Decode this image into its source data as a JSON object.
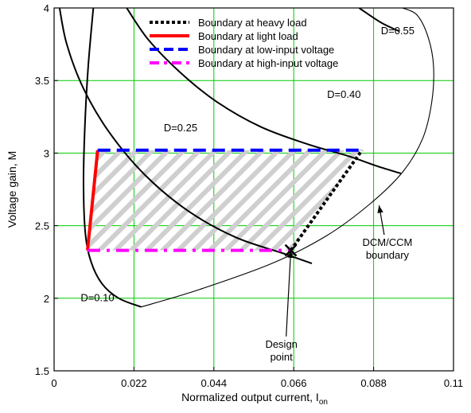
{
  "chart_data": {
    "type": "line",
    "xlabel": "Normalized output current, I",
    "xlabel_sub": "on",
    "ylabel": "Voltage gain, M",
    "xlim": [
      0,
      0.11
    ],
    "ylim": [
      1.5,
      4
    ],
    "xticks": [
      0,
      0.022,
      0.044,
      0.066,
      0.088,
      0.11
    ],
    "xtick_labels": [
      "0",
      "0.022",
      "0.044",
      "0.066",
      "0.088",
      "0.11"
    ],
    "yticks": [
      1.5,
      2,
      2.5,
      3,
      3.5,
      4
    ],
    "ytick_labels": [
      "1.5",
      "2",
      "2.5",
      "3",
      "3.5",
      "4"
    ],
    "grid": true,
    "grid_color": "#00cc00",
    "legend_position": "top-center",
    "series": [
      {
        "name": "Boundary at heavy load",
        "color": "#000000",
        "style": "dotted",
        "x": [
          0.0652,
          0.0848
        ],
        "y": [
          2.33,
          3.02
        ]
      },
      {
        "name": "Boundary at light load",
        "color": "#ff0000",
        "style": "solid",
        "x": [
          0.0092,
          0.012
        ],
        "y": [
          2.33,
          3.02
        ]
      },
      {
        "name": "Boundary at low-input voltage",
        "color": "#0000ff",
        "style": "dashed",
        "x": [
          0.012,
          0.0848
        ],
        "y": [
          3.02,
          3.02
        ]
      },
      {
        "name": "Boundary at high-input voltage",
        "color": "#ff00ff",
        "style": "dashdot",
        "x": [
          0.0092,
          0.0652
        ],
        "y": [
          2.33,
          2.33
        ]
      }
    ],
    "curves": [
      {
        "label": "D=0.10",
        "x": [
          0.0108,
          0.0094,
          0.0085,
          0.0081,
          0.0086,
          0.0102,
          0.0132,
          0.0178,
          0.024
        ],
        "y": [
          4.0,
          3.6,
          3.2,
          2.8,
          2.45,
          2.25,
          2.1,
          2.0,
          1.94
        ]
      },
      {
        "label": "D=0.25",
        "x": [
          0.0015,
          0.0035,
          0.008,
          0.015,
          0.025,
          0.037,
          0.05,
          0.063,
          0.071
        ],
        "y": [
          4.0,
          3.75,
          3.45,
          3.15,
          2.85,
          2.6,
          2.42,
          2.31,
          2.24
        ]
      },
      {
        "label": "D=0.40",
        "x": [
          0.02,
          0.026,
          0.035,
          0.045,
          0.057,
          0.07,
          0.081,
          0.089,
          0.0955
        ],
        "y": [
          4.0,
          3.78,
          3.55,
          3.35,
          3.18,
          3.06,
          2.98,
          2.91,
          2.86
        ]
      },
      {
        "label": "D=0.55",
        "x": [
          0.084,
          0.09,
          0.095
        ],
        "y": [
          4.0,
          3.9,
          3.84
        ]
      },
      {
        "label": "DCM/CCM boundary",
        "x": [
          0.024,
          0.04,
          0.06,
          0.075,
          0.087,
          0.096,
          0.1015,
          0.104,
          0.1045,
          0.103,
          0.1,
          0.096
        ],
        "y": [
          1.94,
          2.06,
          2.24,
          2.43,
          2.65,
          2.87,
          3.1,
          3.35,
          3.6,
          3.8,
          3.95,
          4.0
        ]
      }
    ],
    "curve_labels": [
      {
        "text": "D=0.10",
        "x": 0.0073,
        "y": 1.98
      },
      {
        "text": "D=0.25",
        "x": 0.0302,
        "y": 3.15
      },
      {
        "text": "D=0.40",
        "x": 0.0752,
        "y": 3.38
      },
      {
        "text": "D=0.55",
        "x": 0.09,
        "y": 3.82
      }
    ],
    "design_point": {
      "x": 0.0652,
      "y": 2.33,
      "marker": "x"
    },
    "annotations": [
      {
        "lines": [
          "DCM/CCM",
          "boundary"
        ],
        "x": 0.0918,
        "y": 2.36,
        "arrow_to": [
          0.0895,
          2.64
        ]
      },
      {
        "lines": [
          "Design",
          "point"
        ],
        "x": 0.0626,
        "y": 1.66,
        "arrow_to": [
          0.0652,
          2.33
        ]
      }
    ],
    "shaded_region": {
      "pattern": "hatched",
      "color": "#c8c8c8",
      "x": [
        0.0092,
        0.012,
        0.0848,
        0.0652
      ],
      "y": [
        2.33,
        3.02,
        3.02,
        2.33
      ]
    }
  }
}
